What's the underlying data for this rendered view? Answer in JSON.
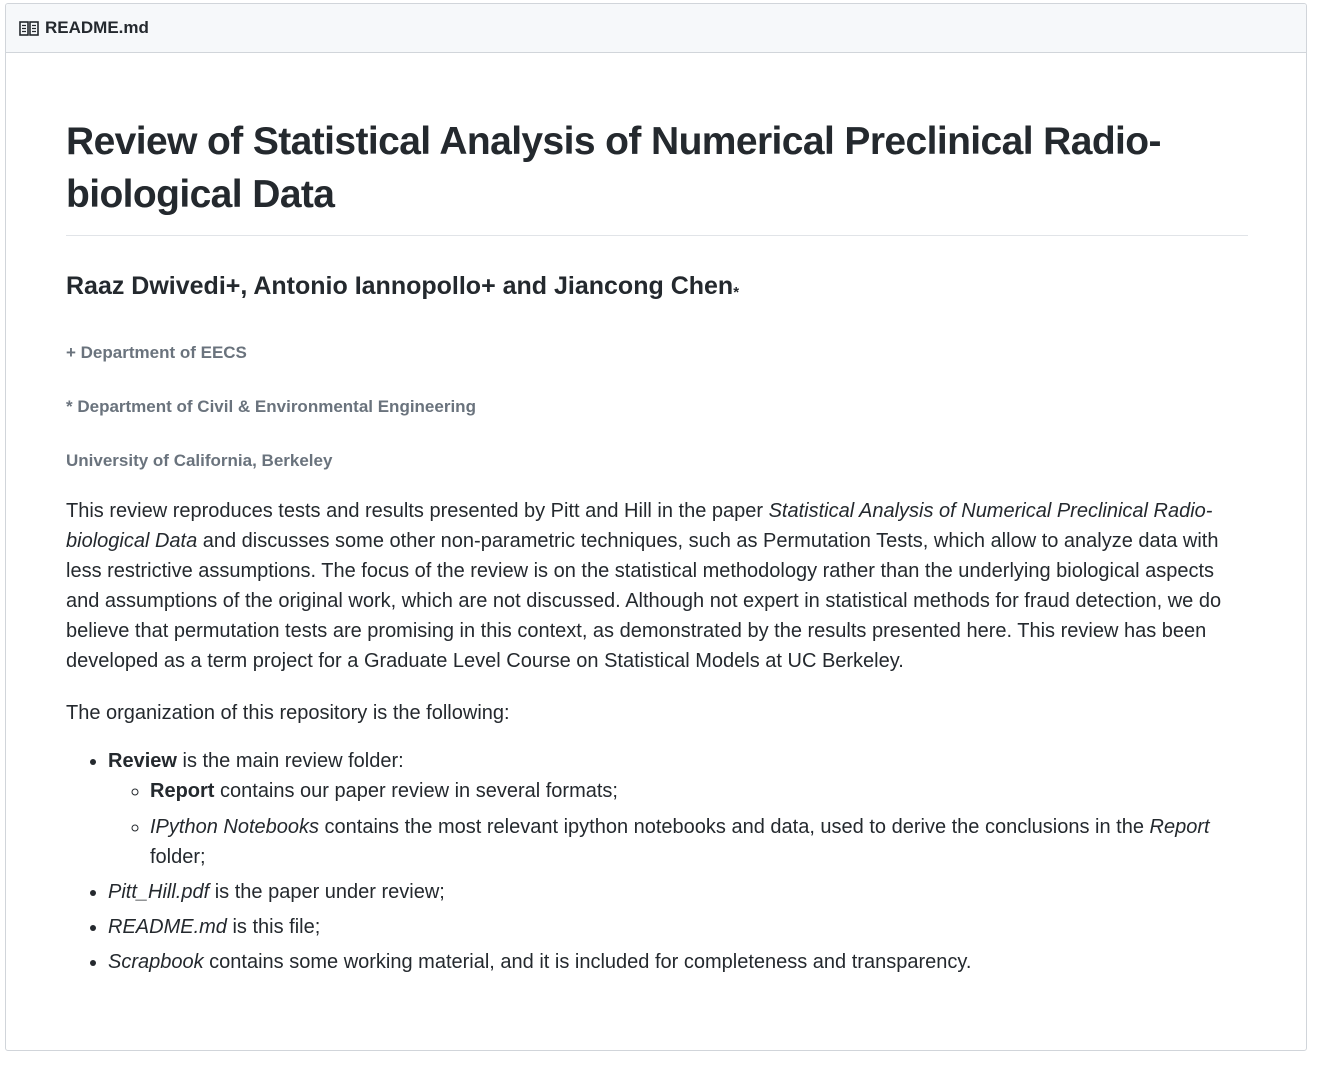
{
  "header": {
    "icon": "book-icon",
    "file_name": "README.md"
  },
  "title": "Review of Statistical Analysis of Numerical Preclinical Radio-biological Data",
  "authors": {
    "text": "Raaz Dwivedi+, Antonio Iannopollo+ and Jiancong Chen",
    "marker": "*"
  },
  "affiliations": [
    "+ Department of EECS",
    "* Department of Civil & Environmental Engineering",
    "University of California, Berkeley"
  ],
  "abstract": {
    "part1": "This review reproduces tests and results presented by Pitt and Hill in the paper ",
    "paper_title": "Statistical Analysis of Numerical Preclinical Radio-biological Data",
    "part2": " and discusses some other non-parametric techniques, such as Permutation Tests, which allow to analyze data with less restrictive assumptions. The focus of the review is on the statistical methodology rather than the underlying biological aspects and assumptions of the original work, which are not discussed. Although not expert in statistical methods for fraud detection, we do believe that permutation tests are promising in this context, as demonstrated by the results presented here. This review has been developed as a term project for a Graduate Level Course on Statistical Models at UC Berkeley."
  },
  "organization_intro": "The organization of this repository is the following:",
  "items": {
    "review": {
      "name": "Review",
      "desc": " is the main review folder:",
      "children": {
        "report": {
          "name": "Report",
          "desc": " contains our paper review in several formats;"
        },
        "notebooks": {
          "name": "IPython Notebooks",
          "desc": " contains the most relevant ipython notebooks and data, used to derive the conclusions in the ",
          "ref": "Report",
          "tail": " folder;"
        }
      }
    },
    "pitt_hill": {
      "name": "Pitt_Hill.pdf",
      "desc": " is the paper under review;"
    },
    "readme": {
      "name": "README.md",
      "desc": " is this file;"
    },
    "scrapbook": {
      "name": "Scrapbook",
      "desc": " contains some working material, and it is included for completeness and transparency."
    }
  }
}
